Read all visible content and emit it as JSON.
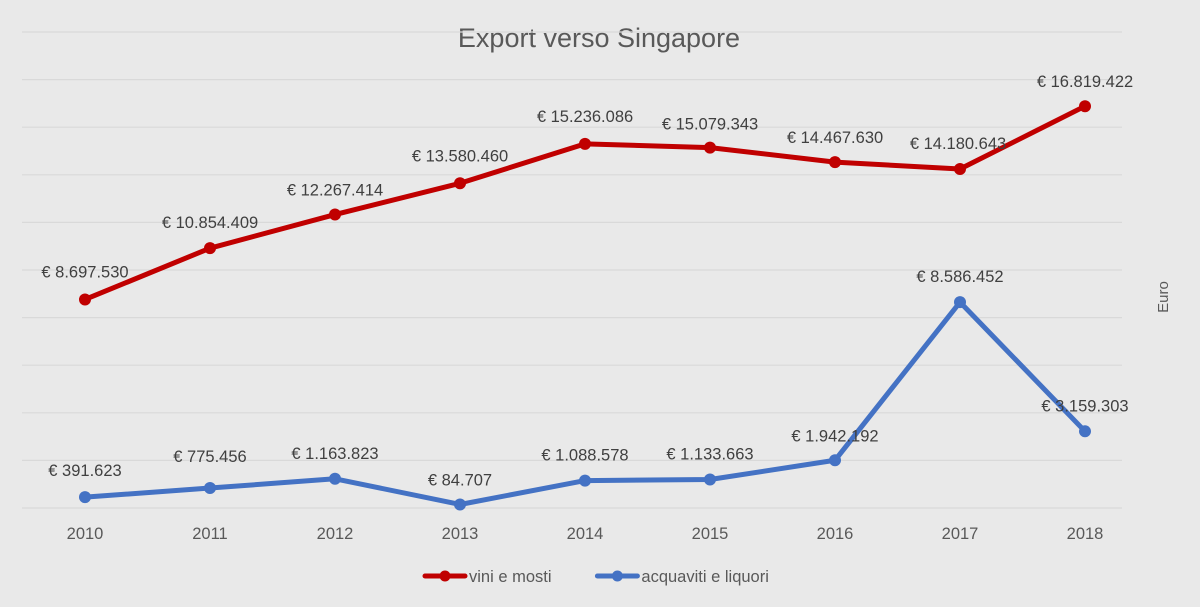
{
  "chart_data": {
    "type": "line",
    "title": "Export verso Singapore",
    "xlabel": "",
    "ylabel": "Euro",
    "categories": [
      "2010",
      "2011",
      "2012",
      "2013",
      "2014",
      "2015",
      "2016",
      "2017",
      "2018"
    ],
    "series": [
      {
        "name": "vini e mosti",
        "color": "#c00000",
        "values": [
          8697530,
          10854409,
          12267414,
          13580460,
          15236086,
          15079343,
          14467630,
          14180643,
          16819422
        ],
        "labels": [
          "€ 8.697.530",
          "€ 10.854.409",
          "€ 12.267.414",
          "€ 13.580.460",
          "€ 15.236.086",
          "€ 15.079.343",
          "€ 14.467.630",
          "€ 14.180.643",
          "€ 16.819.422"
        ]
      },
      {
        "name": "acquaviti e liquori",
        "color": "#4472c4",
        "values": [
          391623,
          775456,
          1163823,
          84707,
          1088578,
          1133663,
          1942192,
          8586452,
          3159303
        ],
        "labels": [
          "€ 391.623",
          "€ 775.456",
          "€ 1.163.823",
          "€ 84.707",
          "€ 1.088.578",
          "€ 1.133.663",
          "€ 1.942.192",
          "€ 8.586.452",
          "€ 3.159.303"
        ]
      }
    ],
    "ylim": [
      0,
      20000000
    ],
    "grid": true,
    "legend_position": "bottom",
    "background": "#e9e9e9"
  }
}
